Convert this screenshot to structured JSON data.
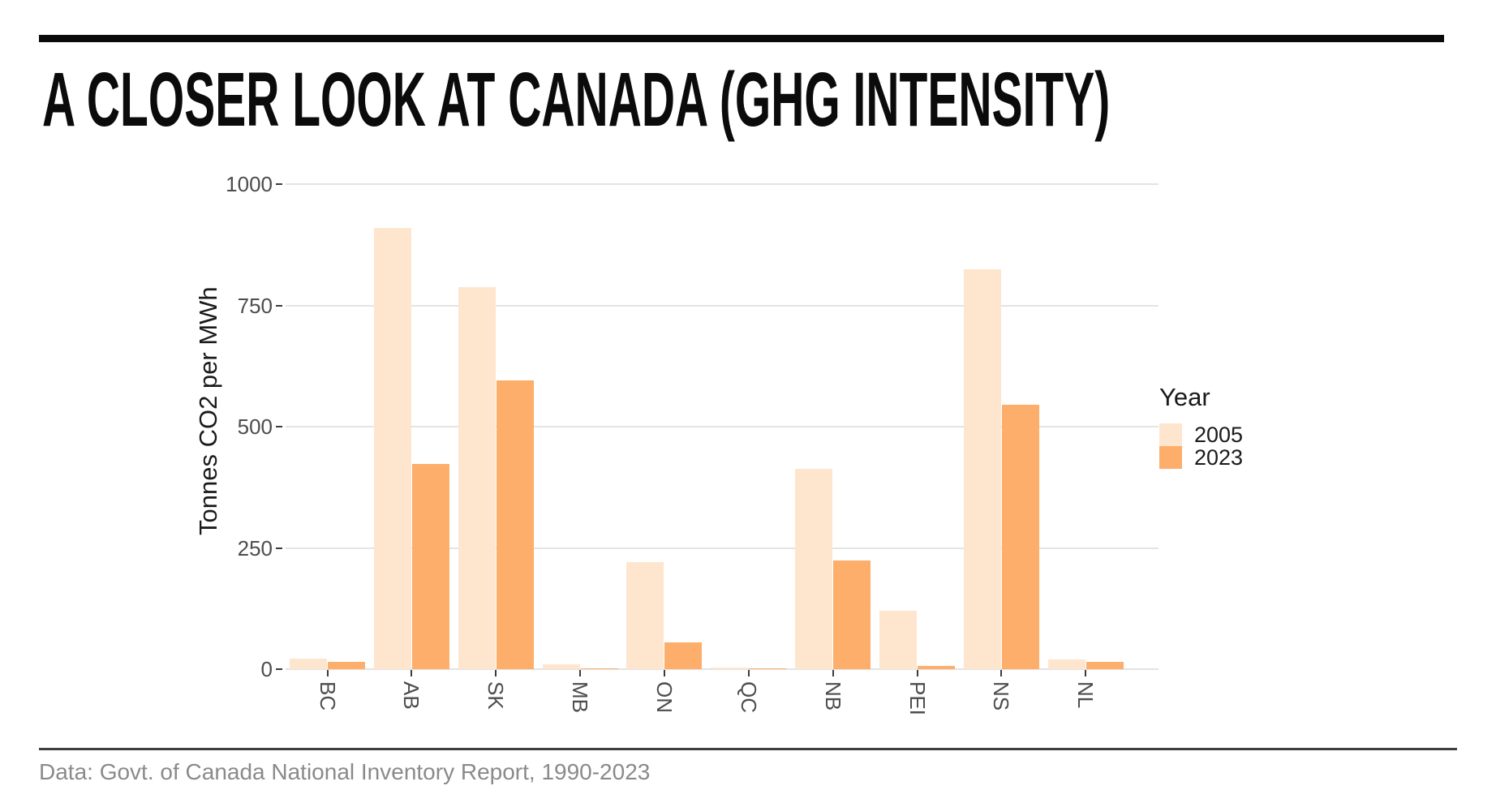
{
  "header": {
    "title": "A CLOSER LOOK AT CANADA (GHG INTENSITY)"
  },
  "legend": {
    "title": "Year",
    "items": [
      {
        "label": "2005",
        "color": "#FEE6CE"
      },
      {
        "label": "2023",
        "color": "#FDAE6B"
      }
    ]
  },
  "footer": {
    "source": "Data: Govt. of Canada National Inventory Report, 1990-2023"
  },
  "chart_data": {
    "type": "bar",
    "title": "A CLOSER LOOK AT CANADA (GHG INTENSITY)",
    "categories": [
      "BC",
      "AB",
      "SK",
      "MB",
      "ON",
      "QC",
      "NB",
      "PEI",
      "NS",
      "NL"
    ],
    "series": [
      {
        "name": "2005",
        "color": "#FEE6CE",
        "values": [
          22,
          910,
          787,
          10,
          221,
          3,
          413,
          121,
          825,
          20
        ]
      },
      {
        "name": "2023",
        "color": "#FDAE6B",
        "values": [
          15,
          423,
          596,
          2,
          55,
          2,
          225,
          7,
          545,
          15
        ]
      }
    ],
    "xlabel": "",
    "ylabel": "Tonnes CO2 per MWh",
    "yticks": [
      0,
      250,
      500,
      750,
      1000
    ],
    "ylim": [
      0,
      1000
    ],
    "grid": true,
    "legend_position": "right",
    "bar_colors": {
      "2005": "#FEE6CE",
      "2023": "#FDAE6B"
    },
    "gridline_color": "#e4e4e4",
    "axis_text_color": "#4d4d4d"
  }
}
